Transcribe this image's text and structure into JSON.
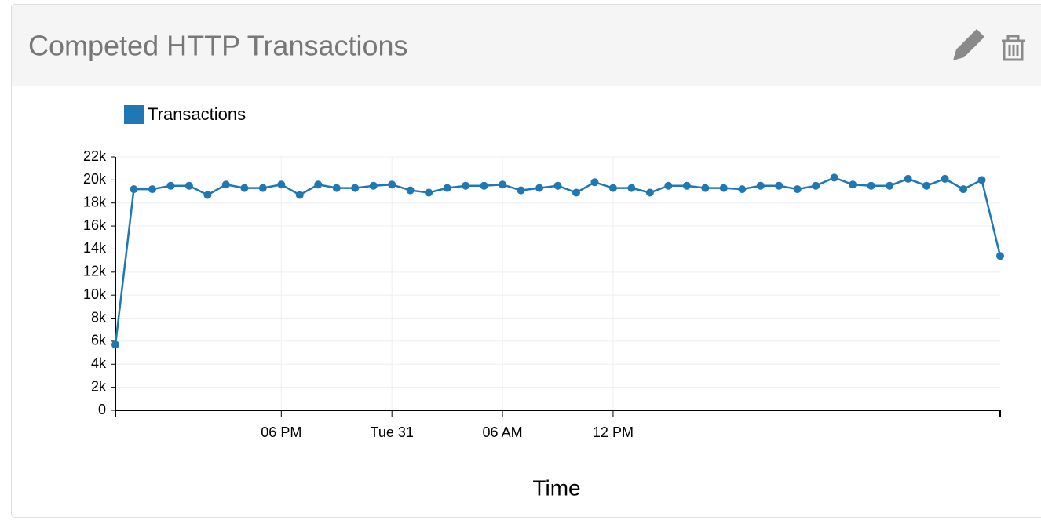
{
  "chart_data": {
    "type": "line",
    "title": "Competed HTTP Transactions",
    "x_label": "Time",
    "x": [
      9,
      10,
      11,
      12,
      13,
      14,
      15,
      16,
      17,
      18,
      19,
      20,
      21,
      22,
      23,
      24,
      25,
      26,
      27,
      28,
      29,
      30,
      31,
      32,
      33,
      34,
      35,
      36,
      37,
      38,
      39,
      40,
      41,
      42,
      43,
      44,
      45,
      46,
      47,
      48,
      49,
      50,
      51,
      52,
      53,
      54,
      55,
      56,
      57
    ],
    "series": [
      {
        "name": "Transactions",
        "color": "#1f77b4",
        "values": [
          5700,
          19200,
          19200,
          19500,
          19500,
          18700,
          19600,
          19300,
          19300,
          19600,
          18700,
          19600,
          19300,
          19300,
          19500,
          19600,
          19100,
          18900,
          19300,
          19500,
          19500,
          19600,
          19100,
          19300,
          19500,
          18900,
          19800,
          19300,
          19300,
          18900,
          19500,
          19500,
          19300,
          19300,
          19200,
          19500,
          19500,
          19200,
          19500,
          20200,
          19600,
          19500,
          19500,
          20100,
          19500,
          20100,
          19200,
          20000,
          13400
        ]
      }
    ],
    "xlim": [
      9,
      57
    ],
    "xticks": [
      {
        "value": 18,
        "label": "06 PM"
      },
      {
        "value": 24,
        "label": "Tue 31"
      },
      {
        "value": 30,
        "label": "06 AM"
      },
      {
        "value": 36,
        "label": "12 PM"
      }
    ],
    "ylim": [
      0,
      22000
    ],
    "yticks": [
      0,
      {
        "value": 2000,
        "label": "2k"
      },
      {
        "value": 4000,
        "label": "4k"
      },
      {
        "value": 6000,
        "label": "6k"
      },
      {
        "value": 8000,
        "label": "8k"
      },
      {
        "value": 10000,
        "label": "10k"
      },
      {
        "value": 12000,
        "label": "12k"
      },
      {
        "value": 14000,
        "label": "14k"
      },
      {
        "value": 16000,
        "label": "16k"
      },
      {
        "value": 18000,
        "label": "18k"
      },
      {
        "value": 20000,
        "label": "20k"
      },
      {
        "value": 22000,
        "label": "22k"
      }
    ],
    "grid": true,
    "legend": "top-left"
  }
}
